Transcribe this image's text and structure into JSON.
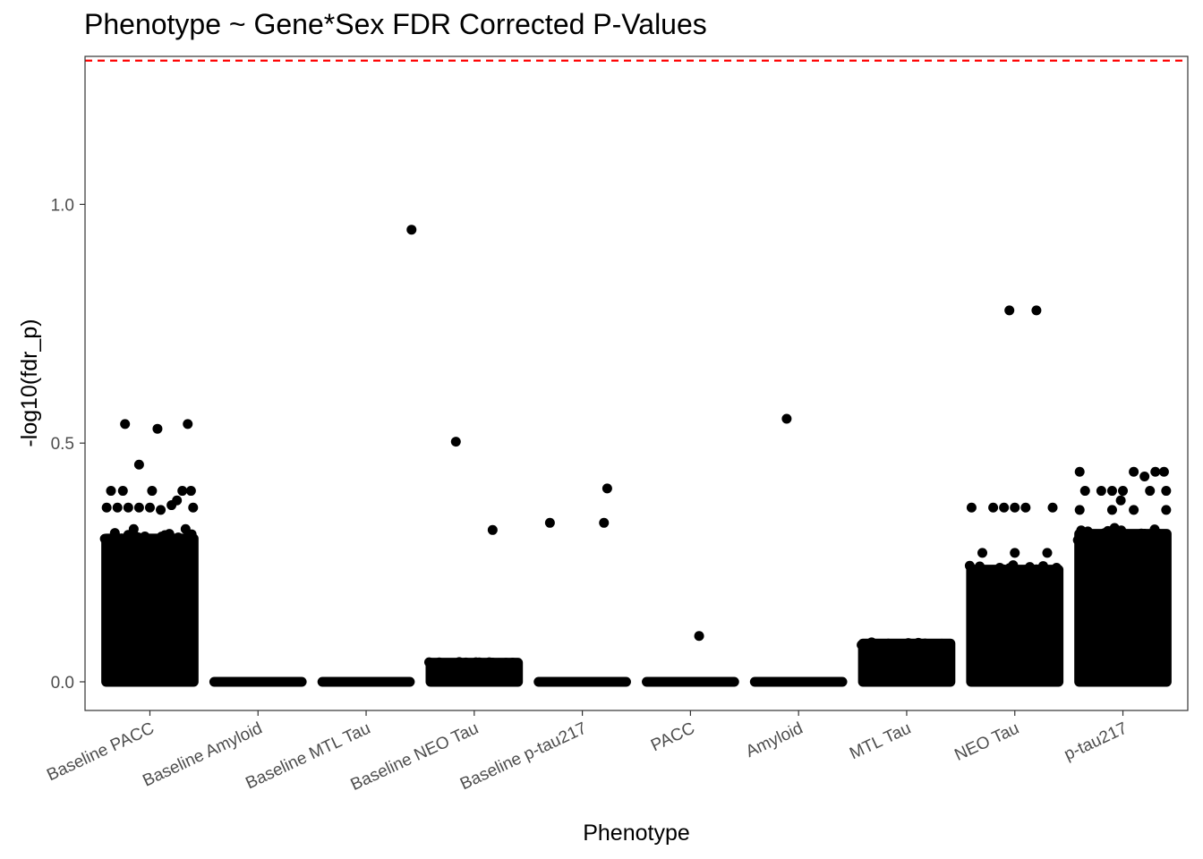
{
  "chart_data": {
    "type": "scatter",
    "title": "Phenotype ~ Gene*Sex FDR Corrected P-Values",
    "xlabel": "Phenotype",
    "ylabel": "-log10(fdr_p)",
    "ylim": [
      -0.06,
      1.31
    ],
    "y_ticks": [
      0.0,
      0.5,
      1.0
    ],
    "y_tick_labels": [
      "0.0",
      "0.5",
      "1.0"
    ],
    "grid": false,
    "point_color": "#000000",
    "reference_line": {
      "y": 1.30103,
      "color": "#ff0000",
      "style": "dashed"
    },
    "categories": [
      "Baseline PACC",
      "Baseline Amyloid",
      "Baseline MTL Tau",
      "Baseline NEO Tau",
      "Baseline p-tau217",
      "PACC",
      "Amyloid",
      "MTL Tau",
      "NEO Tau",
      "p-tau217"
    ],
    "groups": [
      {
        "category": "Baseline PACC",
        "bulk_max": 0.3,
        "outliers": [
          {
            "dx": -0.23,
            "y": 0.54
          },
          {
            "dx": 0.07,
            "y": 0.53
          },
          {
            "dx": 0.35,
            "y": 0.54
          },
          {
            "dx": -0.1,
            "y": 0.455
          },
          {
            "dx": -0.36,
            "y": 0.4
          },
          {
            "dx": -0.25,
            "y": 0.4
          },
          {
            "dx": 0.02,
            "y": 0.4
          },
          {
            "dx": 0.3,
            "y": 0.4
          },
          {
            "dx": 0.38,
            "y": 0.4
          },
          {
            "dx": -0.4,
            "y": 0.365
          },
          {
            "dx": -0.2,
            "y": 0.365
          },
          {
            "dx": 0.0,
            "y": 0.365
          },
          {
            "dx": 0.2,
            "y": 0.37
          },
          {
            "dx": 0.4,
            "y": 0.365
          },
          {
            "dx": -0.1,
            "y": 0.365
          },
          {
            "dx": 0.25,
            "y": 0.38
          },
          {
            "dx": -0.3,
            "y": 0.365
          },
          {
            "dx": 0.1,
            "y": 0.36
          },
          {
            "dx": -0.15,
            "y": 0.32
          },
          {
            "dx": 0.18,
            "y": 0.31
          },
          {
            "dx": -0.35,
            "y": 0.3
          },
          {
            "dx": 0.33,
            "y": 0.32
          }
        ]
      },
      {
        "category": "Baseline Amyloid",
        "bulk_max": 0.0,
        "outliers": []
      },
      {
        "category": "Baseline MTL Tau",
        "bulk_max": 0.0,
        "outliers": [
          {
            "dx": 0.42,
            "y": 0.947
          }
        ]
      },
      {
        "category": "Baseline NEO Tau",
        "bulk_max": 0.04,
        "outliers": [
          {
            "dx": -0.17,
            "y": 0.503
          },
          {
            "dx": 0.17,
            "y": 0.318
          }
        ]
      },
      {
        "category": "Baseline p-tau217",
        "bulk_max": 0.0,
        "outliers": [
          {
            "dx": -0.3,
            "y": 0.333
          },
          {
            "dx": 0.2,
            "y": 0.333
          },
          {
            "dx": 0.23,
            "y": 0.405
          }
        ]
      },
      {
        "category": "PACC",
        "bulk_max": 0.0,
        "outliers": [
          {
            "dx": 0.08,
            "y": 0.096
          }
        ]
      },
      {
        "category": "Amyloid",
        "bulk_max": 0.0,
        "outliers": [
          {
            "dx": -0.11,
            "y": 0.551
          }
        ]
      },
      {
        "category": "MTL Tau",
        "bulk_max": 0.08,
        "outliers": []
      },
      {
        "category": "NEO Tau",
        "bulk_max": 0.235,
        "outliers": [
          {
            "dx": -0.05,
            "y": 0.778
          },
          {
            "dx": 0.2,
            "y": 0.778
          },
          {
            "dx": -0.4,
            "y": 0.365
          },
          {
            "dx": -0.2,
            "y": 0.365
          },
          {
            "dx": -0.1,
            "y": 0.365
          },
          {
            "dx": 0.0,
            "y": 0.365
          },
          {
            "dx": 0.1,
            "y": 0.365
          },
          {
            "dx": 0.35,
            "y": 0.365
          },
          {
            "dx": -0.3,
            "y": 0.27
          },
          {
            "dx": 0.0,
            "y": 0.27
          },
          {
            "dx": 0.3,
            "y": 0.27
          }
        ]
      },
      {
        "category": "p-tau217",
        "bulk_max": 0.31,
        "outliers": [
          {
            "dx": -0.4,
            "y": 0.44
          },
          {
            "dx": 0.3,
            "y": 0.44
          },
          {
            "dx": 0.2,
            "y": 0.43
          },
          {
            "dx": 0.1,
            "y": 0.44
          },
          {
            "dx": 0.38,
            "y": 0.44
          },
          {
            "dx": -0.2,
            "y": 0.4
          },
          {
            "dx": -0.35,
            "y": 0.4
          },
          {
            "dx": 0.0,
            "y": 0.4
          },
          {
            "dx": 0.25,
            "y": 0.4
          },
          {
            "dx": 0.4,
            "y": 0.4
          },
          {
            "dx": -0.1,
            "y": 0.4
          },
          {
            "dx": -0.4,
            "y": 0.36
          },
          {
            "dx": -0.1,
            "y": 0.36
          },
          {
            "dx": 0.1,
            "y": 0.36
          },
          {
            "dx": 0.4,
            "y": 0.36
          },
          {
            "dx": -0.02,
            "y": 0.38
          }
        ]
      }
    ]
  }
}
